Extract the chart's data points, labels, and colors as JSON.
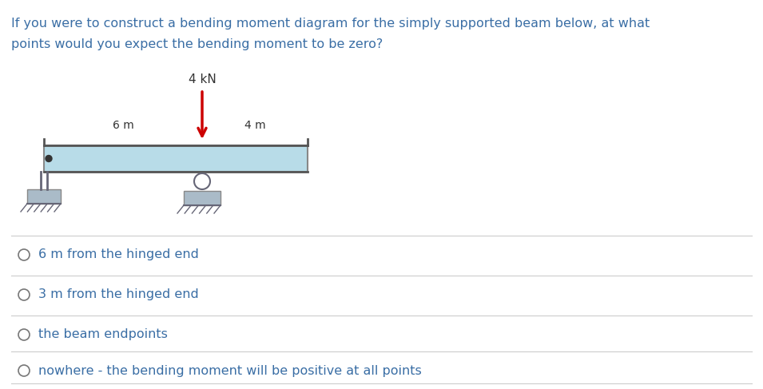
{
  "question_line1": "If you were to construct a bending moment diagram for the simply supported beam below, at what",
  "question_line2": "points would you expect the bending moment to be zero?",
  "load_label": "4 kN",
  "left_label": "6 m",
  "right_label": "4 m",
  "options": [
    "6 m from the hinged end",
    "3 m from the hinged end",
    "the beam endpoints",
    "nowhere - the bending moment will be positive at all points"
  ],
  "beam_color": "#b8dce8",
  "beam_border_color": "#888888",
  "arrow_color": "#cc0000",
  "text_color": "#3a6ea5",
  "background_color": "#ffffff",
  "divider_color": "#cccccc",
  "support_color": "#aabbc8",
  "support_edge_color": "#888888"
}
